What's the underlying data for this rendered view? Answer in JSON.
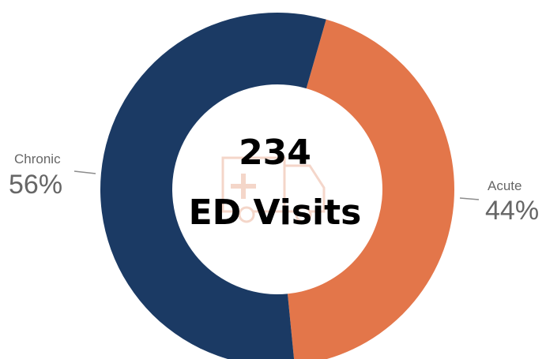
{
  "chart_data": {
    "type": "pie",
    "subtype": "donut",
    "center": {
      "value": "234",
      "label": "ED Visits"
    },
    "slices": [
      {
        "name": "Acute",
        "value": 44,
        "display": "44%",
        "color": "#e3764a"
      },
      {
        "name": "Chronic",
        "value": 56,
        "display": "56%",
        "color": "#1b3a64"
      }
    ],
    "legend": "none",
    "center_icon": "ambulance-icon"
  }
}
